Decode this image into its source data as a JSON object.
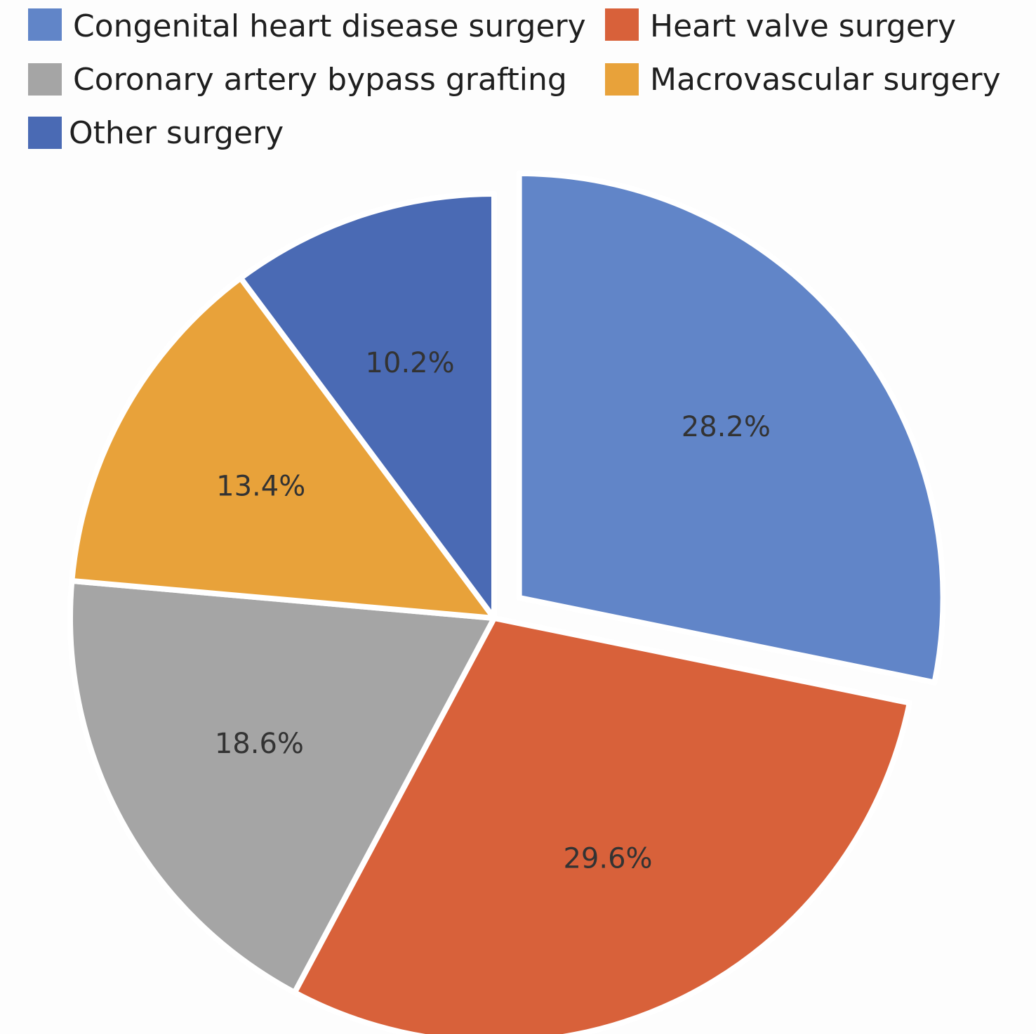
{
  "chart_data": {
    "type": "pie",
    "title": "",
    "legend_placement": "top",
    "exploded": [
      "Congenital heart disease surgery"
    ],
    "slices": [
      {
        "name": "Congenital heart disease surgery",
        "value": 28.2,
        "label": "28.2%",
        "color": "#6185C8"
      },
      {
        "name": "Heart valve surgery",
        "value": 29.6,
        "label": "29.6%",
        "color": "#D8613A"
      },
      {
        "name": "Coronary artery bypass grafting",
        "value": 18.6,
        "label": "18.6%",
        "color": "#A5A5A5"
      },
      {
        "name": "Macrovascular surgery",
        "value": 13.4,
        "label": "13.4%",
        "color": "#E8A23A"
      },
      {
        "name": "Other surgery",
        "value": 10.2,
        "label": "10.2%",
        "color": "#4A6AB4"
      }
    ]
  }
}
